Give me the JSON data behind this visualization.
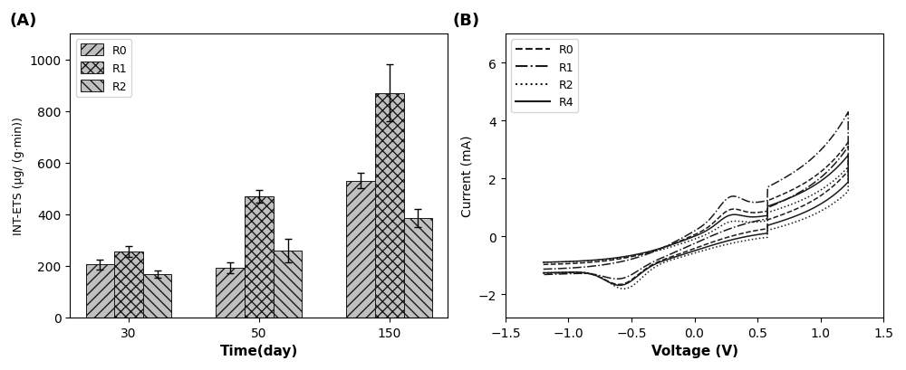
{
  "bar_groups": [
    "30",
    "50",
    "150"
  ],
  "bar_labels": [
    "R0",
    "R1",
    "R2"
  ],
  "bar_values": [
    [
      205,
      255,
      168
    ],
    [
      192,
      470,
      258
    ],
    [
      530,
      870,
      385
    ]
  ],
  "bar_errors": [
    [
      18,
      22,
      15
    ],
    [
      20,
      25,
      45
    ],
    [
      30,
      110,
      35
    ]
  ],
  "ylabel_left": "INT-ETS (μg/ (g·min))",
  "xlabel_left": "Time(day)",
  "ylim_left": [
    0,
    1100
  ],
  "yticks_left": [
    0,
    200,
    400,
    600,
    800,
    1000
  ],
  "panel_a_label": "(A)",
  "panel_b_label": "(B)",
  "xlabel_right": "Voltage (V)",
  "ylabel_right": "Current (mA)",
  "xlim_right": [
    -1.5,
    1.5
  ],
  "ylim_right": [
    -2.8,
    7.0
  ],
  "yticks_right": [
    -2,
    0,
    2,
    4,
    6
  ],
  "xticks_right": [
    -1.5,
    -1.0,
    -0.5,
    0.0,
    0.5,
    1.0,
    1.5
  ],
  "line_labels": [
    "R0",
    "R1",
    "R2",
    "R4"
  ],
  "line_styles": [
    "--",
    "-.",
    ":",
    "-"
  ],
  "line_color": "#1a1a1a",
  "bar_hatch_R0": "///",
  "bar_hatch_R1": "xxx",
  "bar_hatch_R2": "\\\\\\",
  "bar_edge_color": "#1a1a1a",
  "bar_face_color": "#c0c0c0",
  "figure_bg": "#ffffff"
}
